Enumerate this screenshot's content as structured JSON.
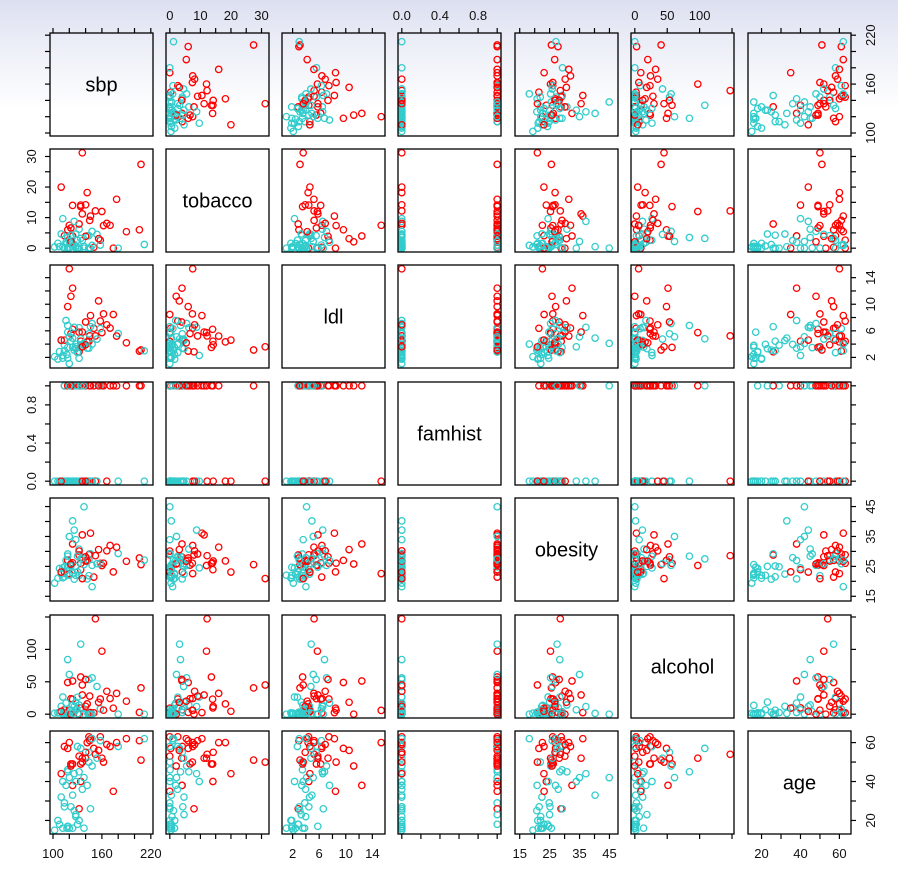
{
  "chart_data": {
    "type": "scatter",
    "subtype": "scatterplot-matrix",
    "variables": [
      {
        "name": "sbp",
        "range": [
          101,
          218
        ],
        "ticks": [
          100,
          120,
          140,
          160,
          180,
          200,
          220
        ],
        "tick_labels": [
          "100",
          "160",
          "220"
        ],
        "label_ticks": [
          100,
          160,
          220
        ]
      },
      {
        "name": "tobacco",
        "range": [
          0,
          31.2
        ],
        "ticks": [
          0,
          5,
          10,
          15,
          20,
          25,
          30
        ],
        "tick_labels": [
          "0",
          "10",
          "20",
          "30"
        ],
        "label_ticks": [
          0,
          10,
          20,
          30
        ]
      },
      {
        "name": "ldl",
        "range": [
          0.98,
          15.33
        ],
        "ticks": [
          2,
          4,
          6,
          8,
          10,
          12,
          14
        ],
        "tick_labels": [
          "2",
          "6",
          "10",
          "14"
        ],
        "label_ticks": [
          2,
          6,
          10,
          14
        ]
      },
      {
        "name": "famhist",
        "range": [
          0,
          1
        ],
        "ticks": [
          0,
          0.2,
          0.4,
          0.6,
          0.8,
          1.0
        ],
        "tick_labels": [
          "0.0",
          "0.4",
          "0.8"
        ],
        "label_ticks": [
          0,
          0.4,
          0.8
        ]
      },
      {
        "name": "obesity",
        "range": [
          14.7,
          46.58
        ],
        "ticks": [
          15,
          20,
          25,
          30,
          35,
          40,
          45
        ],
        "tick_labels": [
          "15",
          "25",
          "35",
          "45"
        ],
        "label_ticks": [
          15,
          25,
          35,
          45
        ]
      },
      {
        "name": "alcohol",
        "range": [
          0,
          147.19
        ],
        "ticks": [
          0,
          50,
          100,
          150
        ],
        "tick_labels": [
          "0",
          "50",
          "100"
        ],
        "label_ticks": [
          0,
          50,
          100
        ]
      },
      {
        "name": "age",
        "range": [
          15,
          64
        ],
        "ticks": [
          20,
          30,
          40,
          50,
          60
        ],
        "tick_labels": [
          "20",
          "40",
          "60"
        ],
        "label_ticks": [
          20,
          40,
          60
        ]
      }
    ],
    "groups": [
      {
        "value": 1,
        "color": "#ff0000"
      },
      {
        "value": 0,
        "color": "#33cccc"
      }
    ],
    "columns": [
      "sbp",
      "tobacco",
      "ldl",
      "famhist",
      "obesity",
      "alcohol",
      "age",
      "group"
    ],
    "points": [
      [
        160,
        12,
        5.73,
        1,
        25.3,
        97.2,
        52,
        1
      ],
      [
        144,
        0.01,
        4.41,
        0,
        28.87,
        2.06,
        63,
        1
      ],
      [
        118,
        0.08,
        3.48,
        1,
        29.14,
        3.81,
        46,
        0
      ],
      [
        170,
        7.5,
        6.41,
        1,
        31.99,
        24.26,
        58,
        1
      ],
      [
        134,
        13.6,
        3.5,
        1,
        25.99,
        57.34,
        49,
        1
      ],
      [
        132,
        6.2,
        6.47,
        1,
        30.77,
        14.14,
        45,
        0
      ],
      [
        142,
        4.05,
        3.38,
        0,
        20.81,
        2.62,
        38,
        0
      ],
      [
        114,
        4.08,
        4.59,
        1,
        23.11,
        6.72,
        58,
        1
      ],
      [
        114,
        0,
        3.83,
        1,
        24.86,
        2.49,
        29,
        0
      ],
      [
        132,
        0,
        5.8,
        1,
        30.11,
        0,
        53,
        1
      ],
      [
        206,
        6,
        2.95,
        1,
        27.8,
        2.78,
        61,
        1
      ],
      [
        134,
        14.1,
        4.44,
        1,
        23.9,
        9.65,
        40,
        1
      ],
      [
        118,
        0,
        1.88,
        0,
        24.69,
        0,
        17,
        0
      ],
      [
        132,
        0,
        1.87,
        0,
        21.97,
        0,
        20,
        0
      ],
      [
        112,
        9.65,
        2.29,
        0,
        24.48,
        26.48,
        40,
        0
      ],
      [
        117,
        1.53,
        2.44,
        0,
        22.3,
        0.7,
        16,
        0
      ],
      [
        120,
        7.5,
        15.33,
        0,
        22.6,
        5.8,
        60,
        1
      ],
      [
        146,
        10.5,
        8.29,
        1,
        36.1,
        2.47,
        62,
        1
      ],
      [
        158,
        2.6,
        7.46,
        1,
        26.02,
        23.5,
        63,
        1
      ],
      [
        124,
        14,
        6.23,
        1,
        26.19,
        23.06,
        49,
        1
      ],
      [
        106,
        1.61,
        1.74,
        0,
        21.03,
        2.06,
        20,
        0
      ],
      [
        132,
        7.9,
        2.85,
        1,
        28.79,
        0,
        26,
        1
      ],
      [
        150,
        0.3,
        6.38,
        1,
        21.41,
        2.06,
        57,
        1
      ],
      [
        138,
        0.6,
        3.81,
        0,
        25.6,
        0,
        16,
        0
      ],
      [
        142,
        18.2,
        4.34,
        0,
        26.84,
        15.94,
        60,
        1
      ],
      [
        124,
        4,
        12.42,
        1,
        32.49,
        51.25,
        38,
        1
      ],
      [
        118,
        6,
        9.65,
        1,
        27.01,
        48.96,
        57,
        1
      ],
      [
        145,
        9.1,
        5.24,
        1,
        29.14,
        27.91,
        61,
        1
      ],
      [
        144,
        4.09,
        5.55,
        0,
        27.24,
        53.58,
        55,
        0
      ],
      [
        146,
        0,
        6.62,
        0,
        29.19,
        0,
        26,
        0
      ],
      [
        136,
        2.52,
        3.95,
        0,
        27.9,
        10.2,
        36,
        0
      ],
      [
        158,
        1.02,
        6.33,
        1,
        25.86,
        8.23,
        61,
        0
      ],
      [
        122,
        6.6,
        5.58,
        1,
        25.41,
        23.97,
        49,
        1
      ],
      [
        126,
        8.75,
        6.53,
        0,
        37.12,
        11.73,
        44,
        0
      ],
      [
        148,
        5.5,
        7.1,
        0,
        25.31,
        56.06,
        48,
        0
      ],
      [
        122,
        4.26,
        4.44,
        0,
        25.14,
        6.17,
        27,
        0
      ],
      [
        140,
        3.9,
        7.32,
        1,
        28.2,
        53.48,
        52,
        1
      ],
      [
        110,
        4.64,
        4.55,
        0,
        22.43,
        12.24,
        32,
        0
      ],
      [
        130,
        0,
        2.82,
        1,
        23.15,
        0.71,
        18,
        0
      ],
      [
        136,
        11.2,
        5.81,
        1,
        35.51,
        29.65,
        52,
        1
      ],
      [
        118,
        0.28,
        5.8,
        0,
        24.74,
        0,
        17,
        0
      ],
      [
        144,
        0.04,
        3.38,
        0,
        21.89,
        0,
        50,
        0
      ],
      [
        120,
        0,
        1.07,
        0,
        22.04,
        0,
        16,
        0
      ],
      [
        130,
        2.61,
        2.72,
        0,
        28.4,
        26.24,
        58,
        0
      ],
      [
        114,
        0,
        2.99,
        0,
        21.53,
        0,
        27,
        0
      ],
      [
        128,
        4.65,
        3.31,
        1,
        24.99,
        18.72,
        23,
        0
      ],
      [
        162,
        7.4,
        8.55,
        1,
        26.07,
        6.17,
        50,
        1
      ],
      [
        116,
        1.91,
        7.56,
        0,
        26.97,
        17.14,
        38,
        0
      ],
      [
        124,
        1.5,
        3.53,
        0,
        22.69,
        13.5,
        16,
        0
      ],
      [
        174,
        0,
        8.46,
        1,
        23.15,
        9.26,
        35,
        1
      ],
      [
        208,
        27.4,
        3.12,
        1,
        25.58,
        40.5,
        51,
        1
      ],
      [
        128,
        0.73,
        3.97,
        0,
        22.02,
        6.74,
        22,
        0
      ],
      [
        112,
        0.41,
        1.88,
        0,
        21.17,
        0,
        16,
        0
      ],
      [
        152,
        12.2,
        5.23,
        0,
        28.58,
        147.19,
        54,
        1
      ],
      [
        154,
        4.5,
        4.75,
        0,
        25.9,
        42.7,
        52,
        0
      ],
      [
        108,
        0.5,
        2.87,
        0,
        24.3,
        2.3,
        18,
        0
      ],
      [
        190,
        5.4,
        4.2,
        1,
        26.7,
        20.1,
        62,
        1
      ],
      [
        180,
        0,
        5.6,
        0,
        29.3,
        0,
        58,
        0
      ],
      [
        118,
        3.5,
        6.8,
        0,
        28.4,
        84.2,
        45,
        0
      ],
      [
        126,
        1.2,
        3.1,
        0,
        20.7,
        3.1,
        25,
        0
      ],
      [
        138,
        0,
        4.1,
        1,
        44.9,
        0,
        42,
        0
      ],
      [
        110,
        20,
        4.6,
        0,
        23.1,
        4.4,
        44,
        1
      ],
      [
        102,
        0.4,
        2.1,
        0,
        19.4,
        1.5,
        15,
        0
      ],
      [
        166,
        8.1,
        6.9,
        0,
        30.2,
        35.3,
        59,
        1
      ],
      [
        140,
        14.2,
        3.9,
        0,
        26.8,
        12.1,
        55,
        1
      ],
      [
        122,
        2.1,
        11.2,
        1,
        25.8,
        0,
        48,
        1
      ],
      [
        128,
        0,
        3.6,
        0,
        33.9,
        6.8,
        40,
        0
      ],
      [
        134,
        3.2,
        4.8,
        1,
        27.5,
        108,
        57,
        0
      ],
      [
        148,
        0.9,
        4,
        0,
        18.2,
        0,
        62,
        0
      ],
      [
        212,
        1.2,
        3,
        0,
        27.1,
        0,
        62,
        0
      ],
      [
        178,
        16,
        5.2,
        1,
        31.4,
        32.1,
        60,
        1
      ],
      [
        124,
        0.5,
        4.9,
        0,
        40.2,
        1.2,
        33,
        0
      ],
      [
        136,
        31.2,
        3.6,
        0,
        20.9,
        45.0,
        50,
        1
      ],
      [
        156,
        3.1,
        10.5,
        1,
        30.6,
        18.4,
        56,
        1
      ],
      [
        120,
        2.2,
        5.1,
        1,
        35.0,
        61.2,
        42,
        0
      ]
    ]
  }
}
